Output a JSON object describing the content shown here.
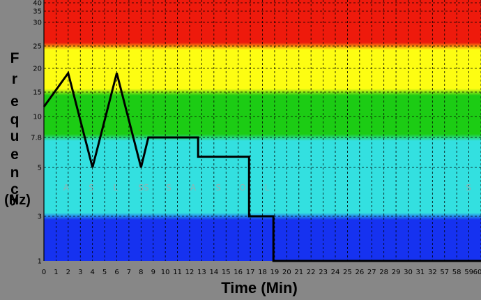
{
  "chart_data": {
    "type": "line",
    "ylabel": "Frequency",
    "ylabel_unit": "(Hz)",
    "xlabel": "Time (Min)",
    "x_ticks": [
      "0",
      "1",
      "2",
      "3",
      "4",
      "5",
      "6",
      "7",
      "8",
      "9",
      "10",
      "11",
      "12",
      "13",
      "14",
      "15",
      "16",
      "17",
      "18",
      "19",
      "20",
      "21",
      "22",
      "23",
      "24",
      "25",
      "26",
      "27",
      "28",
      "29",
      "30",
      "31",
      "32",
      "57",
      "58",
      "59",
      "60"
    ],
    "y_ticks": [
      "1",
      "3",
      "5",
      "7.8",
      "10",
      "15",
      "20",
      "25",
      "30",
      "35",
      "40"
    ],
    "bands": [
      {
        "from": "25",
        "to": "40",
        "color": "#ee1a0c"
      },
      {
        "from": "15",
        "to": "25",
        "color": "#fdfd12"
      },
      {
        "from": "7.8",
        "to": "15",
        "color": "#1ccc14"
      },
      {
        "from": "3",
        "to": "7.8",
        "color": "#33e0e0"
      },
      {
        "from": "1",
        "to": "3",
        "color": "#1632f0"
      }
    ],
    "stage_labels": [
      "A",
      "S",
      "L",
      "SS",
      "S",
      "A",
      "S",
      "O",
      "L",
      "S"
    ],
    "series": [
      {
        "x": [
          0,
          2,
          4,
          6,
          8,
          8.6,
          12.7,
          12.7,
          16.9,
          16.9,
          18.9,
          18.9,
          60
        ],
        "y": [
          12,
          19,
          5,
          19,
          5,
          7.8,
          7.8,
          6,
          6,
          3,
          3,
          1,
          1
        ]
      }
    ]
  }
}
